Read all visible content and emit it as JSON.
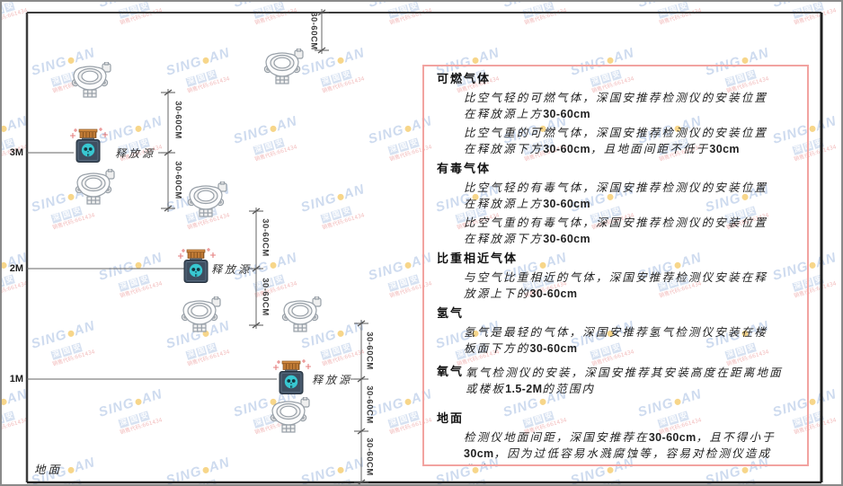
{
  "watermark": {
    "brand_left": "SING",
    "brand_right": "AN",
    "cn": "深国安",
    "code": "销售代码:661434"
  },
  "diagram": {
    "height_labels": [
      "3M",
      "2M",
      "1M"
    ],
    "ground_label": "地面",
    "release_source_label": "释放源",
    "dim_label": "30-60CM"
  },
  "panel": {
    "sections": [
      {
        "heading": "可燃气体",
        "paras": [
          "比空气轻的可燃气体，深国安推荐检测仪的安装位置在释放源上方30-60cm",
          "比空气重的可燃气体，深国安推荐检测仪的安装位置在释放源下方30-60cm，且地面间距不低于30cm"
        ]
      },
      {
        "heading": "有毒气体",
        "paras": [
          "比空气轻的有毒气体，深国安推荐检测仪的安装位置在释放源上方30-60cm",
          "比空气重的有毒气体，深国安推荐检测仪的安装位置在释放源下方30-60cm"
        ]
      },
      {
        "heading": "比重相近气体",
        "paras": [
          "与空气比重相近的气体，深国安推荐检测仪安装在释放源上下的30-60cm"
        ]
      },
      {
        "heading": "氢气",
        "paras": [
          "氢气是最轻的气体，深国安推荐氢气检测仪安装在楼板面下方的30-60cm"
        ]
      },
      {
        "heading": "氧气",
        "paras": [
          "氧气检测仪的安装，深国安推荐其安装高度在距离地面或楼板1.5-2M的范围内"
        ]
      },
      {
        "heading": "地面",
        "paras": [
          "检测仪地面间距，深国安推荐在30-60cm，且不得小于30cm，因为过低容易水溅腐蚀等，容易对检测仪造成伤害"
        ]
      }
    ]
  },
  "colors": {
    "panel_border": "#f2a3a0",
    "line": "#4a4a4a",
    "release_body": "#3e4e60",
    "release_cap": "#c07a35",
    "release_face": "#38c7d1",
    "watermark_blue": "#6a92cd",
    "watermark_dot": "#f0b429"
  }
}
